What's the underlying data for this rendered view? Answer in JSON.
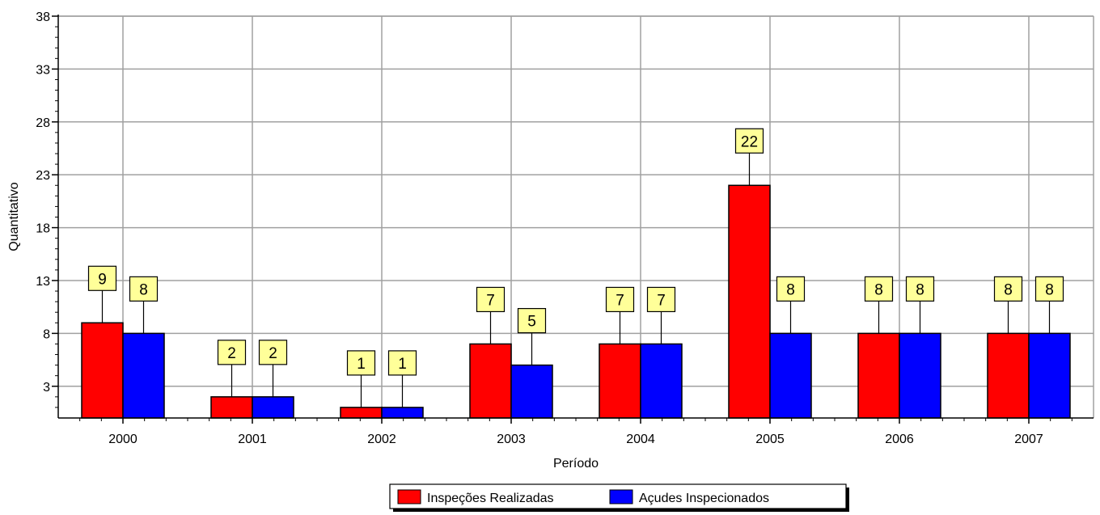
{
  "chart_data": {
    "type": "bar",
    "xlabel": "Período",
    "ylabel": "Quantitativo",
    "categories": [
      "2000",
      "2001",
      "2002",
      "2003",
      "2004",
      "2005",
      "2006",
      "2007"
    ],
    "series": [
      {
        "name": "Inspeções Realizadas",
        "color": "#ff0000",
        "values": [
          9,
          2,
          1,
          7,
          7,
          22,
          8,
          8
        ]
      },
      {
        "name": "Açudes Inspecionados",
        "color": "#0000ff",
        "values": [
          8,
          2,
          1,
          5,
          7,
          8,
          8,
          8
        ]
      }
    ],
    "ylim": [
      0,
      38
    ],
    "yticks": [
      3,
      8,
      13,
      18,
      23,
      28,
      33,
      38
    ],
    "grid": true,
    "data_labels": true,
    "label_box_color": "#ffff99",
    "legend_position": "bottom-center"
  }
}
